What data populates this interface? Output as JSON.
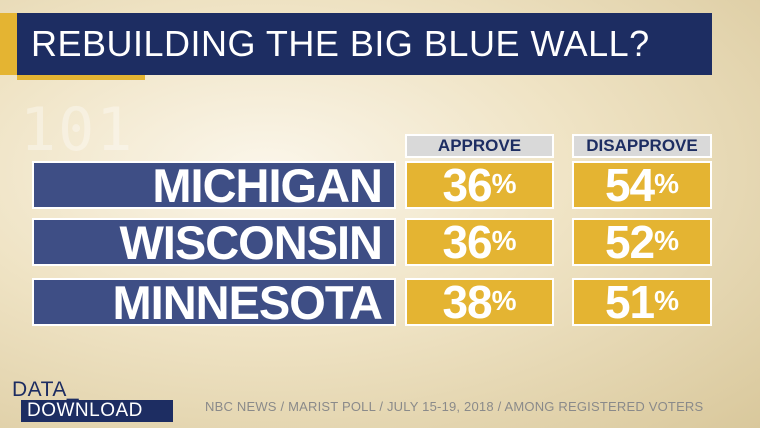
{
  "title": "REBUILDING THE BIG BLUE WALL?",
  "chart_data": {
    "type": "table",
    "columns": [
      "APPROVE",
      "DISAPPROVE"
    ],
    "unit": "%",
    "rows": [
      {
        "state": "MICHIGAN",
        "approve": 36,
        "disapprove": 54
      },
      {
        "state": "WISCONSIN",
        "approve": 36,
        "disapprove": 52
      },
      {
        "state": "MINNESOTA",
        "approve": 38,
        "disapprove": 51
      }
    ]
  },
  "background_digits": "101",
  "logo": {
    "line1": "DATA_",
    "line2": "DOWNLOAD"
  },
  "source": "NBC NEWS / MARIST POLL / JULY 15-19, 2018 / AMONG REGISTERED VOTERS",
  "colors": {
    "navy": "#1d2d62",
    "state_blue": "#3e4e85",
    "gold": "#e4b432",
    "header_gray": "#d9d9d9"
  }
}
